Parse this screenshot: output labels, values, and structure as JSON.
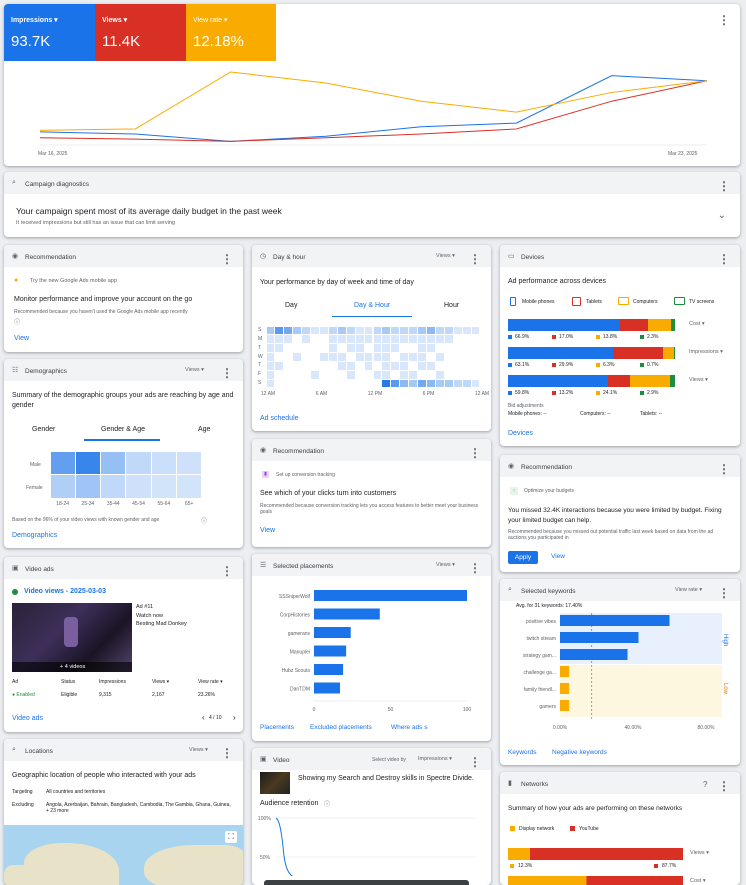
{
  "colors": {
    "blue": "#1a73e8",
    "red": "#d93025",
    "yellow": "#f9ab00",
    "green": "#1e8e3e"
  },
  "top": {
    "metrics": [
      {
        "label": "Impressions ▾",
        "value": "93.7K"
      },
      {
        "label": "Views ▾",
        "value": "11.4K"
      },
      {
        "label": "View rate ▾",
        "value": "12.18%"
      }
    ],
    "date_start": "Mar 16, 2025",
    "date_end": "Mar 23, 2025",
    "chart_data": {
      "type": "line",
      "x": [
        "Mar 16, 2025",
        "",
        "",
        "",
        "",
        "",
        "",
        "Mar 23, 2025"
      ],
      "series": [
        {
          "name": "Impressions",
          "values": [
            0.18,
            0.15,
            0.05,
            0.12,
            0.25,
            0.3,
            0.95,
            0.88
          ]
        },
        {
          "name": "Views",
          "values": [
            0.1,
            0.08,
            0.05,
            0.1,
            0.15,
            0.22,
            0.6,
            0.88
          ]
        },
        {
          "name": "View rate",
          "values": [
            0.2,
            0.22,
            1.0,
            0.85,
            0.6,
            0.45,
            0.72,
            0.88
          ]
        }
      ]
    }
  },
  "diagnostics": {
    "title": "Campaign diagnostics",
    "heading": "Your campaign spent most of its average daily budget in the past week",
    "sub": "It received impressions but still has an issue that can limit serving"
  },
  "rec1": {
    "title": "Recommendation",
    "app": "Try the new Google Ads mobile app",
    "heading": "Monitor performance and improve your account on the go",
    "body": "Recommended because you haven't used the Google Ads mobile app recently",
    "action": "View"
  },
  "demo": {
    "title": "Demographics",
    "dropdown": "Views ▾",
    "heading": "Summary of the demographic groups your ads are reaching by age and gender",
    "tabs": [
      "Gender",
      "Gender & Age",
      "Age"
    ],
    "rows": [
      "Male",
      "Female"
    ],
    "cols": [
      "18-24",
      "25-34",
      "35-44",
      "45-54",
      "55-64",
      "65+"
    ],
    "heat": [
      [
        0.75,
        1.0,
        0.45,
        0.2,
        0.15,
        0.12
      ],
      [
        0.3,
        0.4,
        0.2,
        0.12,
        0.1,
        0.1
      ]
    ],
    "note": "Based on the 96% of your video views with known gender and age",
    "link": "Demographics"
  },
  "video": {
    "title": "Video ads",
    "heading": "Video views - 2025-03-03",
    "ad_name": "Ad #11",
    "watch": "Watch now",
    "vtitle": "Besting Mad Donkey",
    "more": "+ 4 videos",
    "cols": [
      "Ad",
      "Status",
      "Impressions",
      "Views ▾",
      "View rate ▾"
    ],
    "vals": [
      "● Enabled",
      "Eligible",
      "9,315",
      "2,167",
      "23.26%"
    ],
    "link": "Video ads",
    "pager": "4 / 10"
  },
  "loc": {
    "title": "Locations",
    "dropdown": "Views ▾",
    "heading": "Geographic location of people who interacted with your ads",
    "targeting_label": "Targeting",
    "targeting": "All countries and territories",
    "excluding_label": "Excluding",
    "excluding": "Angola, Azerbaijan, Bahrain, Bangladesh, Cambodia, The Gambia, Ghana, Guinea, + 23 more"
  },
  "day": {
    "title": "Day & hour",
    "dropdown": "Views ▾",
    "heading": "Your performance by day of week and time of day",
    "tabs": [
      "Day",
      "Day & Hour",
      "Hour"
    ],
    "days": [
      "S",
      "M",
      "T",
      "W",
      "T",
      "F",
      "S"
    ],
    "hours": [
      "12 AM",
      "6 AM",
      "12 PM",
      "6 PM",
      "12 AM"
    ],
    "link": "Ad schedule"
  },
  "rec2": {
    "title": "Recommendation",
    "sub": "Set up conversion tracking",
    "heading": "See which of your clicks turn into customers",
    "body": "Recommended because conversion tracking lets you access features to better meet your business goals",
    "action": "View"
  },
  "place": {
    "title": "Selected placements",
    "dropdown": "Views ▾",
    "chart_data": {
      "type": "bar",
      "categories": [
        "SSSniperWolf",
        "CorpHistories",
        "gamerans",
        "Manuplei",
        "Hubz Scouts",
        "DanTDM"
      ],
      "values": [
        100,
        43,
        24,
        21,
        19,
        17
      ],
      "xlim": [
        0,
        100
      ],
      "ticks": [
        "0",
        "50",
        "100"
      ]
    },
    "links": [
      "Placements",
      "Excluded placements",
      "Where ads s"
    ]
  },
  "vid2": {
    "title": "Video",
    "select": "Select video by",
    "dropdown": "Impressions ▾",
    "vtitle": "Showing my Search and Destroy skills in Spectre Divide.",
    "ret": "Audience retention",
    "ticks": [
      "100%",
      "50%"
    ]
  },
  "dev": {
    "title": "Devices",
    "heading": "Ad performance across devices",
    "legend": [
      "Mobile phones",
      "Tablets",
      "Computers",
      "TV screens"
    ],
    "chart_data": {
      "type": "bar",
      "rows": [
        {
          "name": "Cost ▾",
          "values": [
            66.9,
            17.0,
            13.8,
            2.3
          ],
          "labels": [
            "66.9%",
            "17.0%",
            "13.8%",
            "2.3%"
          ]
        },
        {
          "name": "Impressions ▾",
          "values": [
            63.1,
            29.9,
            6.3,
            0.7
          ],
          "labels": [
            "63.1%",
            "29.9%",
            "6.3%",
            "0.7%"
          ]
        },
        {
          "name": "Views ▾",
          "values": [
            59.8,
            13.2,
            24.1,
            2.9
          ],
          "labels": [
            "59.8%",
            "13.2%",
            "24.1%",
            "2.9%"
          ]
        }
      ]
    },
    "bid": "Bid adjustments",
    "bid_vals": [
      "Mobile phones: --",
      "Computers: --",
      "Tablets: --"
    ],
    "link": "Devices"
  },
  "rec3": {
    "title": "Recommendation",
    "sub": "Optimize your budgets",
    "heading": "You missed 32.4K interactions because you were limited by budget. Fixing your limited budget can help.",
    "body": "Recommended because you missed out potential traffic last week based on data from the ad auctions you participated in",
    "apply": "Apply",
    "view": "View"
  },
  "kw": {
    "title": "Selected keywords",
    "dropdown": "View rate ▾",
    "avg": "Avg. for 31 keywords: 17.40%",
    "chart_data": {
      "type": "bar",
      "categories": [
        "positive vibes",
        "twitch stream",
        "strategy gam...",
        "challenge ga...",
        "family friendl...",
        "gamers"
      ],
      "values": [
        60,
        43,
        37,
        5,
        5,
        5
      ],
      "xlim": [
        0,
        80
      ],
      "ticks": [
        "0.00%",
        "40.00%",
        "80.00%"
      ]
    },
    "high": "High",
    "low": "Low",
    "links": [
      "Keywords",
      "Negative keywords"
    ]
  },
  "net": {
    "title": "Networks",
    "heading": "Summary of how your ads are performing on these networks",
    "legend": [
      "Display network",
      "YouTube"
    ],
    "row1": "Views ▾",
    "row2": "Cost ▾",
    "v1": "12.3%",
    "v2": "87.7%",
    "chart_data": {
      "type": "bar",
      "rows": [
        {
          "name": "Views",
          "values": [
            12.3,
            87.7
          ]
        }
      ]
    }
  }
}
